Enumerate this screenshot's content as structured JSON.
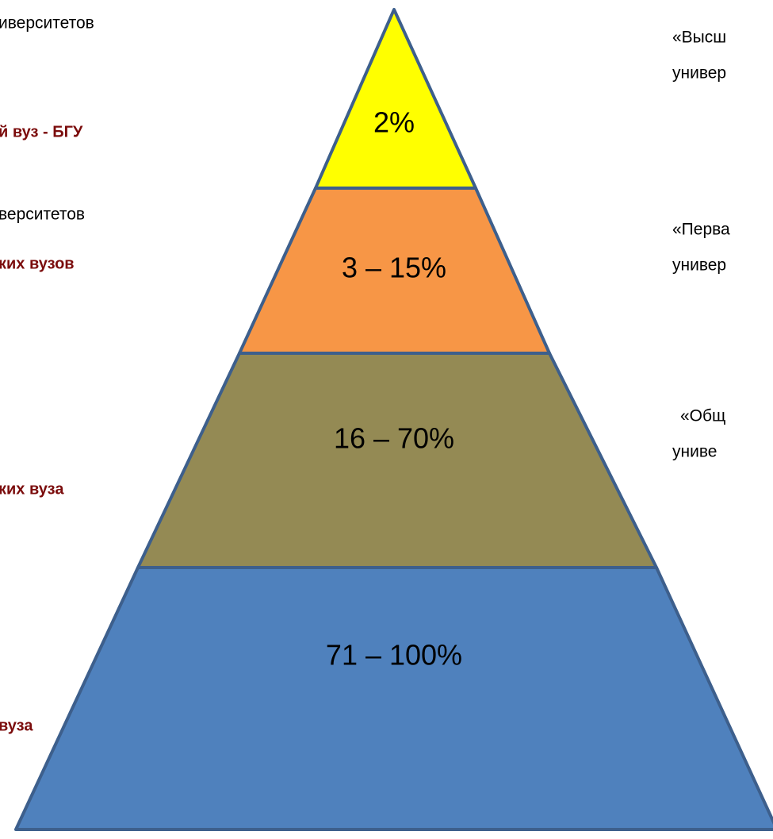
{
  "left_labels": [
    {
      "text": "иверситетов",
      "bold": false
    },
    {
      "text": "й  вуз - БГУ",
      "bold": true
    },
    {
      "text": "верситетов",
      "bold": false
    },
    {
      "text": "ких вузов",
      "bold": true
    },
    {
      "text": "ких вуза",
      "bold": true
    },
    {
      "text": "вуза",
      "bold": true
    }
  ],
  "levels": [
    {
      "label": "2%"
    },
    {
      "label": "3 – 15%"
    },
    {
      "label": "16 – 70%"
    },
    {
      "label": "71 – 100%"
    }
  ],
  "right_labels": [
    [
      "«Высш",
      "универ"
    ],
    [
      "«Перва",
      "универ"
    ],
    [
      "«Общ",
      "униве"
    ]
  ]
}
